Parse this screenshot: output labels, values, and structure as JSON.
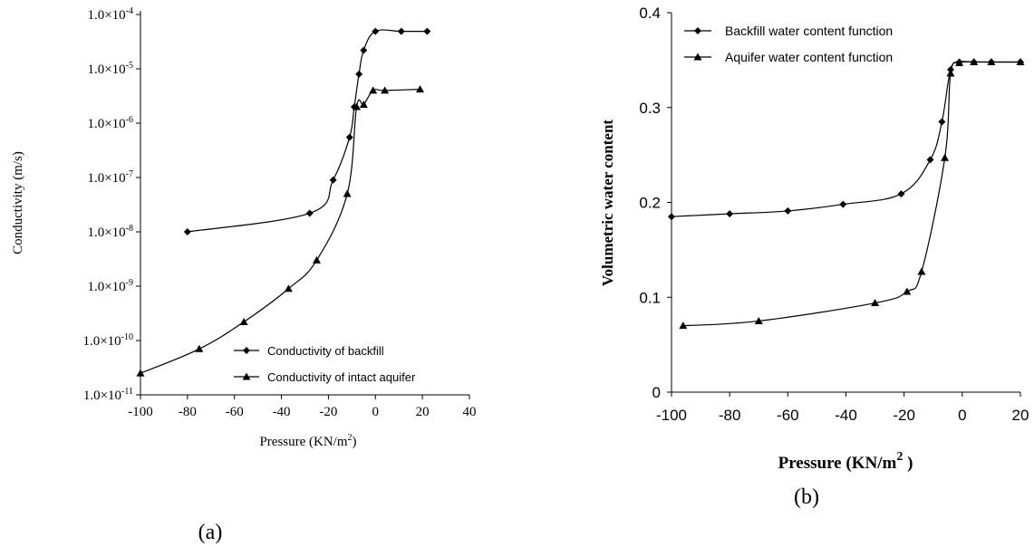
{
  "panel_labels": {
    "a": "(a)",
    "b": "(b)"
  },
  "chart_data": [
    {
      "type": "line",
      "panel": "(a)",
      "xlabel": "Pressure (KN/m",
      "xlabel_sup": "2",
      "xlabel_tail": ")",
      "ylabel": "Conductivity (m/s)",
      "xlim": [
        -100,
        40
      ],
      "xticks": [
        -100,
        -80,
        -60,
        -40,
        -20,
        0,
        20,
        40
      ],
      "yscale": "log",
      "ylim_exp": [
        -11,
        -4
      ],
      "ytick_labels": [
        {
          "exp": -4,
          "mant": "1.0×10",
          "sup": "-4"
        },
        {
          "exp": -5,
          "mant": "1.0×10",
          "sup": "-5"
        },
        {
          "exp": -6,
          "mant": "1.0×10",
          "sup": "-6"
        },
        {
          "exp": -7,
          "mant": "1.0×10",
          "sup": "-7"
        },
        {
          "exp": -8,
          "mant": "1.0×10",
          "sup": "-8"
        },
        {
          "exp": -9,
          "mant": "1.0×10",
          "sup": "-9"
        },
        {
          "exp": -10,
          "mant": "1.0×10",
          "sup": "-10"
        },
        {
          "exp": -11,
          "mant": "1.0×10",
          "sup": "-11"
        }
      ],
      "legend_position": "bottom-right",
      "grid": false,
      "series": [
        {
          "name": "Conductivity of backfill",
          "marker": "diamond",
          "points": [
            [
              -80,
              1e-08
            ],
            [
              -28,
              2.2e-08
            ],
            [
              -18,
              9e-08
            ],
            [
              -11,
              5.5e-07
            ],
            [
              -9,
              2e-06
            ],
            [
              -7,
              8e-06
            ],
            [
              -5,
              2.2e-05
            ],
            [
              0,
              4.9e-05
            ],
            [
              11,
              4.9e-05
            ],
            [
              22,
              4.9e-05
            ]
          ]
        },
        {
          "name": "Conductivity of intact aquifer",
          "marker": "triangle",
          "points": [
            [
              -100,
              2.5e-11
            ],
            [
              -75,
              7e-11
            ],
            [
              -56,
              2.2e-10
            ],
            [
              -37,
              9e-10
            ],
            [
              -25,
              3e-09
            ],
            [
              -12,
              5e-08
            ],
            [
              -8,
              2e-06
            ],
            [
              -5,
              2.2e-06
            ],
            [
              -1,
              4e-06
            ],
            [
              4,
              4e-06
            ],
            [
              19,
              4.2e-06
            ]
          ]
        }
      ]
    },
    {
      "type": "line",
      "panel": "(b)",
      "xlabel": "Pressure (KN/m",
      "xlabel_sup": "2",
      "xlabel_tail": " )",
      "ylabel": "Volumetric water content",
      "xlim": [
        -100,
        20
      ],
      "xticks": [
        -100,
        -80,
        -60,
        -40,
        -20,
        0,
        20
      ],
      "ylim": [
        0,
        0.4
      ],
      "yticks": [
        0,
        0.1,
        0.2,
        0.3,
        0.4
      ],
      "ytick_labels": [
        "0",
        "0.1",
        "0.2",
        "0.3",
        "0.4"
      ],
      "legend_position": "top-left",
      "grid": false,
      "series": [
        {
          "name": "Backfill water content function",
          "marker": "diamond",
          "points": [
            [
              -100,
              0.185
            ],
            [
              -80,
              0.188
            ],
            [
              -60,
              0.191
            ],
            [
              -41,
              0.198
            ],
            [
              -21,
              0.209
            ],
            [
              -11,
              0.245
            ],
            [
              -7,
              0.285
            ],
            [
              -4,
              0.34
            ],
            [
              -1,
              0.348
            ],
            [
              4,
              0.348
            ],
            [
              10,
              0.348
            ],
            [
              20,
              0.348
            ]
          ]
        },
        {
          "name": "Aquifer water content function",
          "marker": "triangle",
          "points": [
            [
              -96,
              0.07
            ],
            [
              -70,
              0.075
            ],
            [
              -30,
              0.094
            ],
            [
              -19,
              0.106
            ],
            [
              -14,
              0.127
            ],
            [
              -6,
              0.247
            ],
            [
              -4,
              0.336
            ],
            [
              -1,
              0.347
            ],
            [
              4,
              0.348
            ],
            [
              10,
              0.348
            ],
            [
              20,
              0.348
            ]
          ]
        }
      ]
    }
  ]
}
